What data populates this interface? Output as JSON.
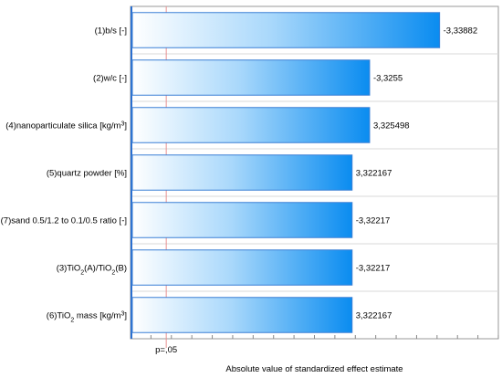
{
  "chart_data": {
    "type": "bar",
    "orientation": "horizontal",
    "title": "",
    "xlabel": "Absolute value of standardized effect estimate",
    "ylabel": "",
    "categories": [
      {
        "prefix": "(1)b/s [-]"
      },
      {
        "prefix": "(2)w/c [-]"
      },
      {
        "prefix": "(4)nanoparticulate silica [kg/m",
        "sup": "3",
        "suffix": "]"
      },
      {
        "prefix": "(5)quartz powder [%]"
      },
      {
        "prefix": "(7)sand 0.5/1.2 to 0.1/0.5 ratio [-]"
      },
      {
        "prefix": "(3)TiO",
        "sub": "2",
        "mid": "(A)/TiO",
        "sub2": "2",
        "suffix": "(B)"
      },
      {
        "prefix": "(6)TiO",
        "sub": "2",
        "suffix": " mass [kg/m",
        "sup": "3",
        "end": "]"
      }
    ],
    "values": [
      3.33882,
      3.3255,
      3.325498,
      3.322167,
      3.32217,
      3.32217,
      3.322167
    ],
    "value_labels": [
      "-3,33882",
      "-3,3255",
      "3,325498",
      "3,322167",
      "-3,32217",
      "-3,32217",
      "3,322167"
    ],
    "xlim": [
      3.28,
      3.35
    ],
    "reference_line": {
      "label": "p=,05",
      "value": 3.2868
    },
    "colors": {
      "bar_start": "#ffffff",
      "bar_end": "#0a8cf0",
      "bar_edge": "#3a7fd5",
      "reference_line": "#e89090"
    }
  }
}
